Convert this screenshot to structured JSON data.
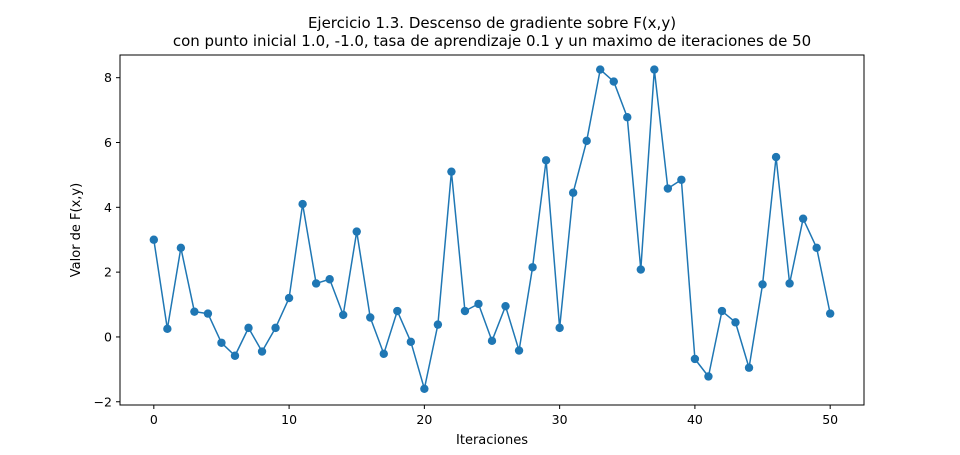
{
  "chart_data": {
    "type": "line",
    "title_line1": "Ejercicio 1.3. Descenso de gradiente sobre F(x,y)",
    "title_line2": "con punto inicial 1.0, -1.0, tasa de aprendizaje 0.1 y un maximo de iteraciones de 50",
    "xlabel": "Iteraciones",
    "ylabel": "Valor de F(x,y)",
    "xlim": [
      -2.5,
      52.5
    ],
    "ylim": [
      -2.1,
      8.7
    ],
    "x_ticks": [
      0,
      10,
      20,
      30,
      40,
      50
    ],
    "y_ticks": [
      -2,
      0,
      2,
      4,
      6,
      8
    ],
    "grid": false,
    "series": [
      {
        "color": "#1f77b4",
        "marker": "circle",
        "x": [
          0,
          1,
          2,
          3,
          4,
          5,
          6,
          7,
          8,
          9,
          10,
          11,
          12,
          13,
          14,
          15,
          16,
          17,
          18,
          19,
          20,
          21,
          22,
          23,
          24,
          25,
          26,
          27,
          28,
          29,
          30,
          31,
          32,
          33,
          34,
          35,
          36,
          37,
          38,
          39,
          40,
          41,
          42,
          43,
          44,
          45,
          46,
          47,
          48,
          49,
          50
        ],
        "y": [
          3.0,
          0.25,
          2.75,
          0.78,
          0.72,
          -0.18,
          -0.58,
          0.28,
          -0.45,
          0.28,
          1.2,
          4.1,
          1.65,
          1.78,
          0.68,
          3.25,
          0.6,
          -0.52,
          0.8,
          -0.15,
          -1.6,
          0.38,
          5.1,
          0.8,
          1.02,
          -0.12,
          0.95,
          -0.42,
          2.15,
          5.45,
          0.28,
          4.45,
          6.05,
          8.25,
          7.88,
          6.78,
          2.08,
          8.25,
          4.58,
          4.85,
          -0.68,
          -1.22,
          0.8,
          0.45,
          -0.95,
          1.62,
          5.55,
          1.65,
          3.65,
          2.75,
          0.72
        ]
      }
    ]
  }
}
